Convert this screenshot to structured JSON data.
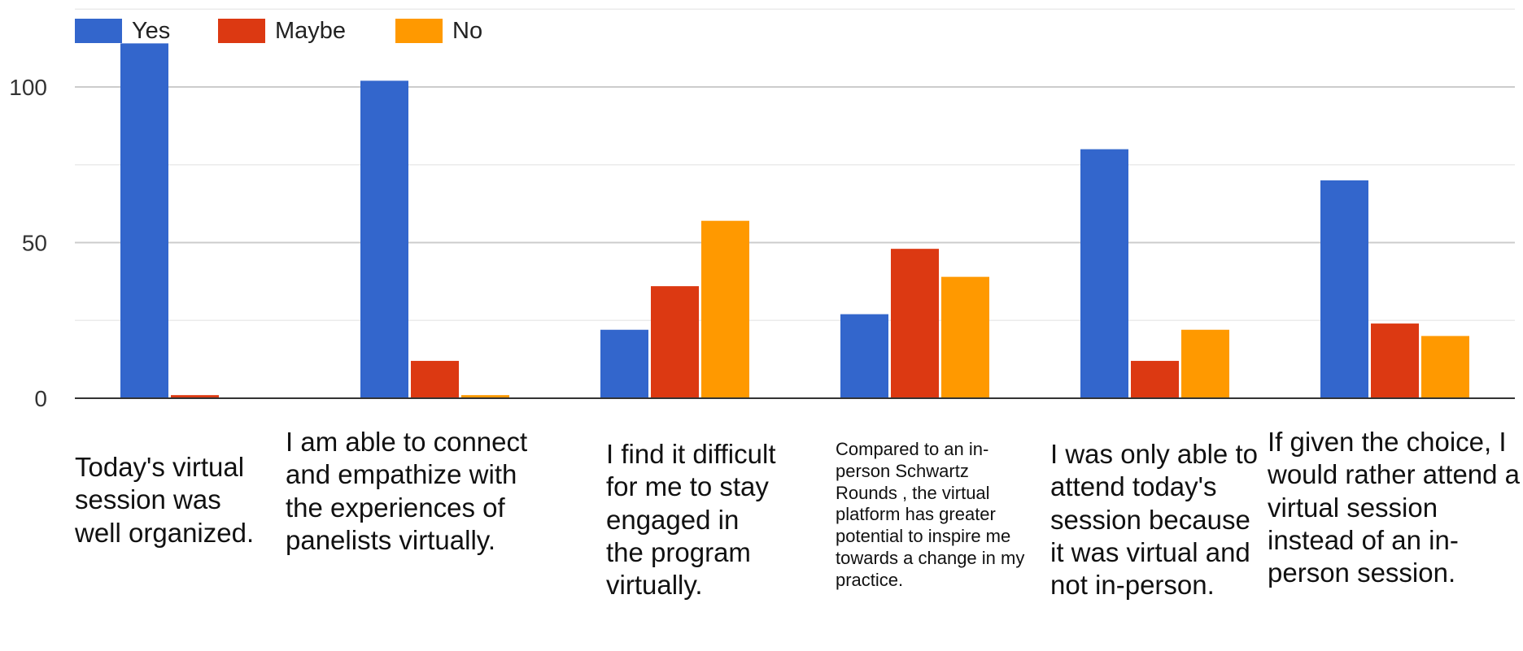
{
  "chart_data": {
    "type": "bar",
    "title": "",
    "xlabel": "",
    "ylabel": "",
    "ylim": [
      0,
      120
    ],
    "yticks": [
      0,
      50,
      100
    ],
    "grid": true,
    "legend_position": "top-left",
    "categories": [
      "Today's virtual session was well organized.",
      "I am able to connect and empathize with the experiences of panelists virtually.",
      "I find it difficult for me to stay engaged in the program virtually.",
      "Compared to an in-person Schwartz Rounds , the virtual platform has greater potential to inspire me towards a change in my practice.",
      "I was only able to attend today's session because it was virtual and not in-person.",
      "If given the choice, I would rather attend a virtual session instead of an in-person session."
    ],
    "series": [
      {
        "name": "Yes",
        "color": "#3366cc",
        "values": [
          114,
          102,
          22,
          27,
          80,
          70
        ]
      },
      {
        "name": "Maybe",
        "color": "#dc3912",
        "values": [
          1,
          12,
          36,
          48,
          12,
          24
        ]
      },
      {
        "name": "No",
        "color": "#ff9900",
        "values": [
          0,
          1,
          57,
          39,
          22,
          20
        ]
      }
    ]
  }
}
